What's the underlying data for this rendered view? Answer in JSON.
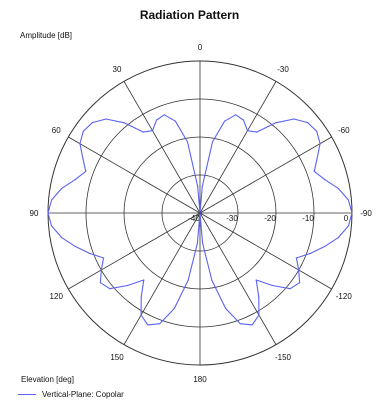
{
  "chart_data": {
    "type": "polar-line",
    "title": "Radiation Pattern",
    "ylabel": "Amplitude [dB]",
    "xlabel": "Elevation [deg]",
    "angle_ticks": [
      0,
      -30,
      -60,
      -90,
      -120,
      -150,
      180,
      150,
      120,
      90,
      60,
      30
    ],
    "radial_ticks": [
      -40,
      -30,
      -20,
      -10,
      0
    ],
    "rlim": [
      -40,
      0
    ],
    "grid": true,
    "legend_position": "bottom-left",
    "series": [
      {
        "name": "Vertical-Plane: Copolar",
        "color": "#5b63f2",
        "angles": [
          0,
          5,
          10,
          15,
          20,
          25,
          30,
          35,
          40,
          45,
          50,
          55,
          60,
          65,
          70,
          75,
          80,
          85,
          90,
          95,
          100,
          105,
          110,
          115,
          120,
          125,
          130,
          135,
          140,
          145,
          150,
          155,
          160,
          165,
          170,
          175,
          180,
          185,
          190,
          195,
          200,
          205,
          210,
          215,
          220,
          225,
          230,
          235,
          240,
          245,
          250,
          255,
          260,
          265,
          270,
          275,
          280,
          285,
          290,
          295,
          300,
          305,
          310,
          315,
          320,
          325,
          330,
          335,
          340,
          345,
          350,
          355
        ],
        "values": [
          -40,
          -33,
          -21,
          -15,
          -12.5,
          -13,
          -15,
          -14,
          -9,
          -5,
          -3,
          -2.5,
          -3.5,
          -6,
          -8,
          -6,
          -3,
          -0.8,
          0,
          -0.8,
          -3,
          -6,
          -9,
          -12,
          -10,
          -8,
          -9,
          -13,
          -17,
          -13,
          -9,
          -7.5,
          -9,
          -14,
          -22,
          -32,
          -40,
          -32,
          -22,
          -14,
          -9,
          -7.5,
          -9,
          -13,
          -17,
          -13,
          -9,
          -8,
          -10,
          -12,
          -9,
          -6,
          -3,
          -0.8,
          0,
          -0.8,
          -3,
          -6,
          -8,
          -6,
          -3.5,
          -2.5,
          -3,
          -5,
          -9,
          -14,
          -15,
          -13,
          -12.5,
          -15,
          -21,
          -33
        ]
      }
    ]
  }
}
